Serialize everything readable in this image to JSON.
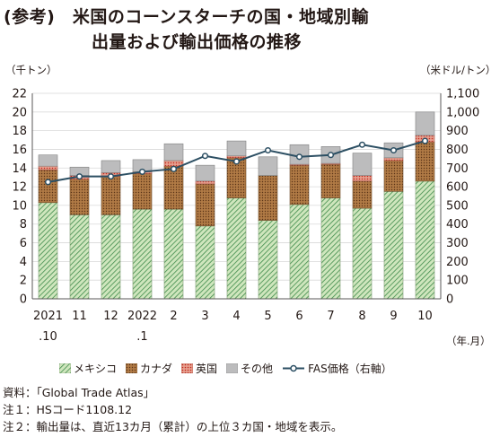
{
  "title_line1": "(参考)　米国のコーンスターチの国・地域別輸",
  "title_line2": "出量および輸出価格の推移",
  "left_axis_unit": "（千トン）",
  "right_axis_unit": "（米ドル/トン）",
  "x_axis_unit": "（年.月）",
  "notes": [
    "資料：「Global Trade Atlas」",
    "注１：HSコード1108.12",
    "注２：輸出量は、直近13カ月（累計）の上位３カ国・地域を表示。"
  ],
  "colors": {
    "mexico": "#cfe6bd",
    "mexico_hatch": "#3e8a4b",
    "canada": "#b07a45",
    "canada_dot": "#5b3417",
    "uk": "#e7a08f",
    "uk_dot": "#c0291e",
    "other": "#bcbcbd",
    "price_line": "#2c4f63",
    "grid": "#d9d9d9",
    "axis": "#595757"
  },
  "chart_data": {
    "type": "bar",
    "stacked": true,
    "categories": [
      {
        "line1": "2021",
        "line2": ".10"
      },
      {
        "line1": "11",
        "line2": ""
      },
      {
        "line1": "12",
        "line2": ""
      },
      {
        "line1": "2022",
        "line2": ".1"
      },
      {
        "line1": "2",
        "line2": ""
      },
      {
        "line1": "3",
        "line2": ""
      },
      {
        "line1": "4",
        "line2": ""
      },
      {
        "line1": "5",
        "line2": ""
      },
      {
        "line1": "6",
        "line2": ""
      },
      {
        "line1": "7",
        "line2": ""
      },
      {
        "line1": "8",
        "line2": ""
      },
      {
        "line1": "9",
        "line2": ""
      },
      {
        "line1": "10",
        "line2": ""
      }
    ],
    "series": [
      {
        "name": "メキシコ",
        "key": "mexico",
        "values": [
          10.3,
          9.0,
          9.0,
          9.6,
          9.6,
          7.8,
          10.8,
          8.4,
          10.1,
          10.8,
          9.7,
          11.5,
          12.6
        ]
      },
      {
        "name": "カナダ",
        "key": "canada",
        "values": [
          3.5,
          3.8,
          4.1,
          3.8,
          4.6,
          4.5,
          4.3,
          4.8,
          4.2,
          3.6,
          2.9,
          3.3,
          4.2
        ]
      },
      {
        "name": "英国",
        "key": "uk",
        "values": [
          0.4,
          0.4,
          0.4,
          0.2,
          0.6,
          0.3,
          0.2,
          0.0,
          0.1,
          0.1,
          0.6,
          0.3,
          0.7
        ]
      },
      {
        "name": "その他",
        "key": "other",
        "values": [
          1.2,
          0.9,
          1.3,
          1.3,
          1.8,
          1.7,
          1.6,
          2.0,
          2.1,
          1.8,
          2.4,
          1.6,
          2.5
        ]
      }
    ],
    "line_series": {
      "name": "FAS価格（右軸）",
      "values": [
        625,
        655,
        655,
        680,
        695,
        765,
        735,
        795,
        760,
        770,
        825,
        795,
        845
      ]
    },
    "left_axis": {
      "ylim": [
        0,
        22
      ],
      "ticks": [
        "0",
        "2",
        "4",
        "6",
        "8",
        "10",
        "12",
        "14",
        "16",
        "18",
        "20",
        "22"
      ]
    },
    "right_axis": {
      "ylim": [
        0,
        1100
      ],
      "ticks": [
        "0",
        "100",
        "200",
        "300",
        "400",
        "500",
        "600",
        "700",
        "800",
        "900",
        "1,000",
        "1,100"
      ]
    },
    "grid": true,
    "legend_position": "bottom"
  }
}
